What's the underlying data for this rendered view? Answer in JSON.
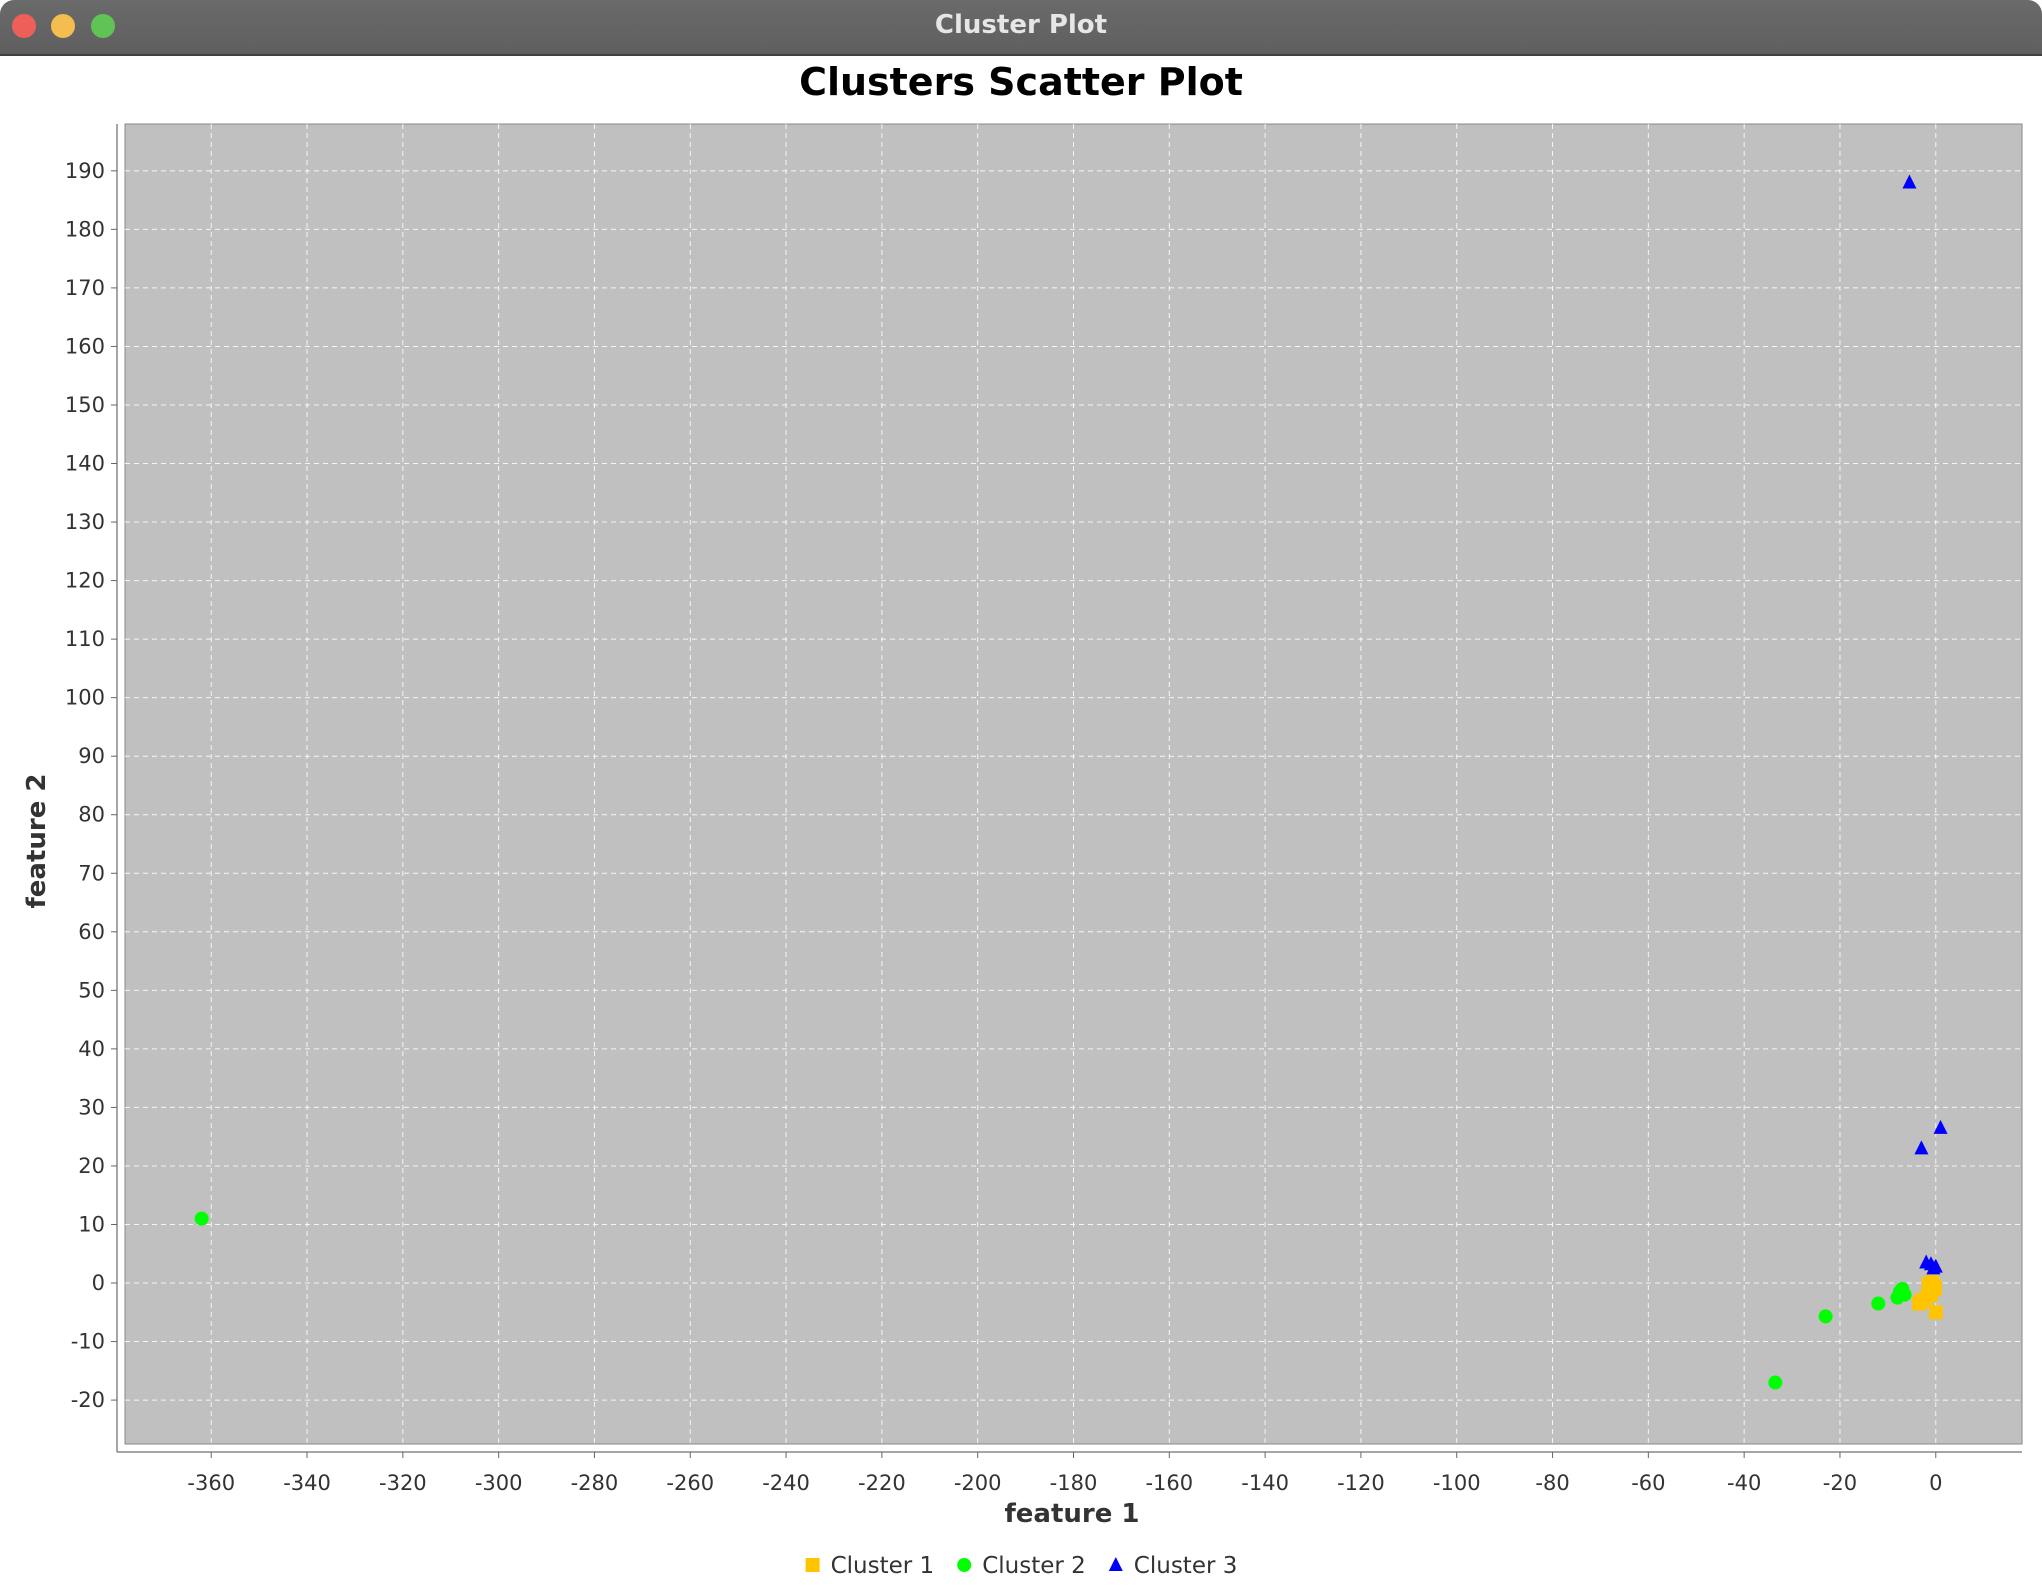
{
  "window": {
    "title": "Cluster Plot"
  },
  "colors": {
    "plot_bg": "#c0c0c0",
    "grid": "#ffffff",
    "cluster1": "#ffc400",
    "cluster2": "#00ff00",
    "cluster3": "#0000ff"
  },
  "chart_data": {
    "type": "scatter",
    "title": "Clusters Scatter Plot",
    "xlabel": "feature 1",
    "ylabel": "feature 2",
    "xlim": [
      -378,
      18
    ],
    "ylim": [
      -27.5,
      198
    ],
    "xticks": [
      -360,
      -340,
      -320,
      -300,
      -280,
      -260,
      -240,
      -220,
      -200,
      -180,
      -160,
      -140,
      -120,
      -100,
      -80,
      -60,
      -40,
      -20,
      0
    ],
    "yticks": [
      -20,
      -10,
      0,
      10,
      20,
      30,
      40,
      50,
      60,
      70,
      80,
      90,
      100,
      110,
      120,
      130,
      140,
      150,
      160,
      170,
      180,
      190
    ],
    "grid": true,
    "legend_position": "bottom",
    "series": [
      {
        "name": "Cluster 1",
        "marker": "square",
        "color": "#ffc400",
        "points": [
          [
            -0.5,
            -0.5
          ],
          [
            -0.8,
            0.2
          ],
          [
            -1.5,
            -0.2
          ],
          [
            -0.3,
            -1
          ],
          [
            -0.2,
            -0.8
          ],
          [
            -2,
            -2.5
          ],
          [
            -3,
            -3
          ],
          [
            -3.5,
            -3.5
          ],
          [
            -1,
            -2
          ],
          [
            0,
            -5
          ]
        ]
      },
      {
        "name": "Cluster 2",
        "marker": "circle",
        "color": "#00ff00",
        "points": [
          [
            -362,
            11
          ],
          [
            -7,
            -1
          ],
          [
            -7.5,
            -1.5
          ],
          [
            -8,
            -2.5
          ],
          [
            -6.5,
            -2
          ],
          [
            -7.2,
            -1.8
          ],
          [
            -12,
            -3.5
          ],
          [
            -23,
            -5.7
          ],
          [
            -33.5,
            -17
          ]
        ]
      },
      {
        "name": "Cluster 3",
        "marker": "triangle",
        "color": "#0000ff",
        "points": [
          [
            -5.5,
            188
          ],
          [
            1,
            26.5
          ],
          [
            -3,
            23
          ],
          [
            -2,
            3.5
          ],
          [
            -1,
            3.2
          ],
          [
            -0.5,
            2.5
          ],
          [
            0,
            2.8
          ]
        ]
      }
    ]
  }
}
